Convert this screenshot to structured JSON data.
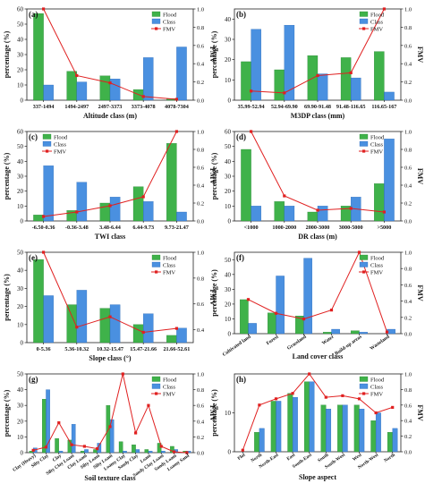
{
  "colors": {
    "flood": "#3fb24a",
    "class": "#4a90e0",
    "fmv": "#e02020",
    "flood_stroke": "#1e7d2a",
    "class_stroke": "#1f5fb0"
  },
  "legend": {
    "flood": "Flood",
    "class": "Class",
    "fmv": "FMV"
  },
  "chart_data": [
    {
      "panel": "(a)",
      "type": "bar+line",
      "xlabel": "Altitude class (m)",
      "ylabel": "percentage (%)",
      "y2label": "FMV",
      "categories": [
        "337-1494",
        "1494-2497",
        "2497-3373",
        "3373-4078",
        "4078-7304"
      ],
      "ylim": [
        0,
        60
      ],
      "yticks": [
        0,
        10,
        20,
        30,
        40,
        50,
        60
      ],
      "y2lim": [
        0,
        1.0
      ],
      "y2ticks": [
        0.0,
        0.2,
        0.4,
        0.6,
        0.8,
        1.0
      ],
      "series": [
        {
          "name": "Flood",
          "values": [
            57,
            19,
            16,
            7,
            1
          ]
        },
        {
          "name": "Class",
          "values": [
            10,
            12,
            14,
            28,
            35
          ]
        },
        {
          "name": "FMV",
          "values": [
            1.0,
            0.27,
            0.19,
            0.04,
            0.01
          ]
        }
      ],
      "grid": false,
      "legend": "top-right"
    },
    {
      "panel": "(b)",
      "type": "bar+line",
      "xlabel": "M3DP class (mm)",
      "ylabel": "percentage (%)",
      "y2label": "FMV",
      "categories": [
        "35.99-52.94",
        "52.94-69.90",
        "69.90-91.48",
        "91.48-116.65",
        "116.65-167"
      ],
      "ylim": [
        0,
        45
      ],
      "yticks": [
        0,
        10,
        20,
        30,
        40
      ],
      "y2lim": [
        0,
        1.0
      ],
      "y2ticks": [
        0.0,
        0.2,
        0.4,
        0.6,
        0.8,
        1.0
      ],
      "series": [
        {
          "name": "Flood",
          "values": [
            19,
            15,
            22,
            21,
            24
          ]
        },
        {
          "name": "Class",
          "values": [
            35,
            37,
            13,
            11,
            4
          ]
        },
        {
          "name": "FMV",
          "values": [
            0.1,
            0.08,
            0.27,
            0.3,
            1.0
          ]
        }
      ],
      "grid": false,
      "legend": "top-right"
    },
    {
      "panel": "(c)",
      "type": "bar+line",
      "xlabel": "TWI class",
      "ylabel": "percentage (%)",
      "y2label": "FMV",
      "categories": [
        "-6.50-0.36",
        "-0.36-3.48",
        "3.48-6.44",
        "6.44-9.73",
        "9.73-21.47"
      ],
      "ylim": [
        0,
        60
      ],
      "yticks": [
        0,
        10,
        20,
        30,
        40,
        50,
        60
      ],
      "y2lim": [
        0,
        1.0
      ],
      "y2ticks": [
        0.0,
        0.2,
        0.4,
        0.6,
        0.8,
        1.0
      ],
      "series": [
        {
          "name": "Flood",
          "values": [
            4,
            7,
            12,
            23,
            52
          ]
        },
        {
          "name": "Class",
          "values": [
            37,
            26,
            16,
            13,
            6
          ]
        },
        {
          "name": "FMV",
          "values": [
            0.05,
            0.1,
            0.17,
            0.27,
            1.0
          ]
        }
      ],
      "grid": false,
      "legend": "top-left"
    },
    {
      "panel": "(d)",
      "type": "bar+line",
      "xlabel": "DR class (m)",
      "ylabel": "percentage (%)",
      "y2label": "FMV",
      "categories": [
        "<1000",
        "1000-2000",
        "2000-3000",
        "3000-5000",
        ">5000"
      ],
      "ylim": [
        0,
        60
      ],
      "yticks": [
        0,
        10,
        20,
        30,
        40,
        50,
        60
      ],
      "y2lim": [
        0,
        1.0
      ],
      "y2ticks": [
        0.0,
        0.2,
        0.4,
        0.6,
        0.8,
        1.0
      ],
      "series": [
        {
          "name": "Flood",
          "values": [
            48,
            13,
            6,
            10,
            25
          ]
        },
        {
          "name": "Class",
          "values": [
            10,
            10,
            10,
            16,
            55
          ]
        },
        {
          "name": "FMV",
          "values": [
            1.0,
            0.28,
            0.12,
            0.14,
            0.1
          ]
        }
      ],
      "grid": false,
      "legend": "top-right"
    },
    {
      "panel": "(e)",
      "type": "bar+line",
      "xlabel": "Slope class (°)",
      "ylabel": "percentage (%)",
      "y2label": "FMV",
      "categories": [
        "0-5.36",
        "5.36-10.32",
        "10.32-15.47",
        "15.47-21.66",
        "21.66-52.61"
      ],
      "ylim": [
        0,
        50
      ],
      "yticks": [
        0,
        10,
        20,
        30,
        40,
        50
      ],
      "y2lim": [
        0.3,
        1.0
      ],
      "y2ticks": [
        0.4,
        0.6,
        0.8,
        1.0
      ],
      "series": [
        {
          "name": "Flood",
          "values": [
            46,
            21,
            19,
            10,
            4
          ]
        },
        {
          "name": "Class",
          "values": [
            26,
            29,
            21,
            16,
            8
          ]
        },
        {
          "name": "FMV",
          "values": [
            1.0,
            0.42,
            0.5,
            0.38,
            0.41
          ]
        }
      ],
      "grid": false,
      "legend": "top-right"
    },
    {
      "panel": "(f)",
      "type": "bar+line",
      "xlabel": "Land cover class",
      "ylabel": "percentage (%)",
      "y2label": "FMV",
      "categories": [
        "Cultivated land",
        "Forest",
        "Grassland",
        "Water",
        "Build-up areas",
        "Wasteland"
      ],
      "ylim": [
        0,
        55
      ],
      "yticks": [
        0,
        10,
        20,
        30,
        40,
        50
      ],
      "y2lim": [
        0,
        1.0
      ],
      "y2ticks": [
        0.0,
        0.2,
        0.4,
        0.6,
        0.8,
        1.0
      ],
      "series": [
        {
          "name": "Flood",
          "values": [
            23,
            14,
            12,
            1,
            2,
            0
          ]
        },
        {
          "name": "Class",
          "values": [
            7,
            39,
            51,
            3,
            1,
            3
          ]
        },
        {
          "name": "FMV",
          "values": [
            0.42,
            0.25,
            0.18,
            0.29,
            1.0,
            0.02
          ]
        }
      ],
      "grid": false,
      "legend": "top-right"
    },
    {
      "panel": "(g)",
      "type": "bar+line",
      "xlabel": "Soil texture class",
      "ylabel": "percentage (%)",
      "y2label": "FMV",
      "categories": [
        "Clay (Heavy)",
        "Silty Clay",
        "Clay",
        "Silty Clay Loam",
        "Clay Loam",
        "Silty Loam",
        "Silty Loam",
        "Loamy Clay",
        "Sandy Clay",
        "Loam",
        "Sandy Clay Loam",
        "Sandy Loam",
        "Loamy Sand"
      ],
      "ylim": [
        0,
        50
      ],
      "yticks": [
        0,
        10,
        20,
        30,
        40,
        50
      ],
      "y2lim": [
        0,
        1.0
      ],
      "y2ticks": [
        0.0,
        0.2,
        0.4,
        0.6,
        0.8,
        1.0
      ],
      "series": [
        {
          "name": "Flood",
          "values": [
            1,
            34,
            9,
            8,
            1,
            2,
            30,
            7,
            5,
            2,
            6,
            4,
            1
          ]
        },
        {
          "name": "Class",
          "values": [
            3,
            40,
            1,
            18,
            2,
            6,
            21,
            1,
            2,
            1,
            1,
            2,
            1
          ]
        },
        {
          "name": "FMV",
          "values": [
            0.03,
            0.07,
            0.38,
            0.1,
            0.08,
            0.05,
            0.33,
            1.0,
            0.25,
            0.6,
            0.08,
            0.01,
            0.0
          ]
        }
      ],
      "grid": false,
      "legend": "top-right"
    },
    {
      "panel": "(h)",
      "type": "bar+line",
      "xlabel": "Slope aspect",
      "ylabel": "percentage (%)",
      "y2label": "FMV",
      "categories": [
        "Flat",
        "North",
        "North-East",
        "East",
        "South-East",
        "South",
        "South-West",
        "West",
        "North-West",
        "North"
      ],
      "ylim": [
        0,
        20
      ],
      "yticks": [
        0,
        10
      ],
      "y2lim": [
        0,
        1.0
      ],
      "y2ticks": [
        0.0,
        0.2,
        0.4,
        0.6,
        0.8,
        1.0
      ],
      "series": [
        {
          "name": "Flood",
          "values": [
            0,
            5,
            13,
            15,
            18,
            12,
            12,
            12,
            8,
            5
          ]
        },
        {
          "name": "Class",
          "values": [
            0,
            6,
            13,
            14,
            18,
            11,
            12,
            11,
            10,
            6
          ]
        },
        {
          "name": "FMV",
          "values": [
            0.02,
            0.6,
            0.68,
            0.75,
            1.0,
            0.7,
            0.72,
            0.68,
            0.5,
            0.57
          ]
        }
      ],
      "grid": false,
      "legend": "top-right"
    }
  ]
}
